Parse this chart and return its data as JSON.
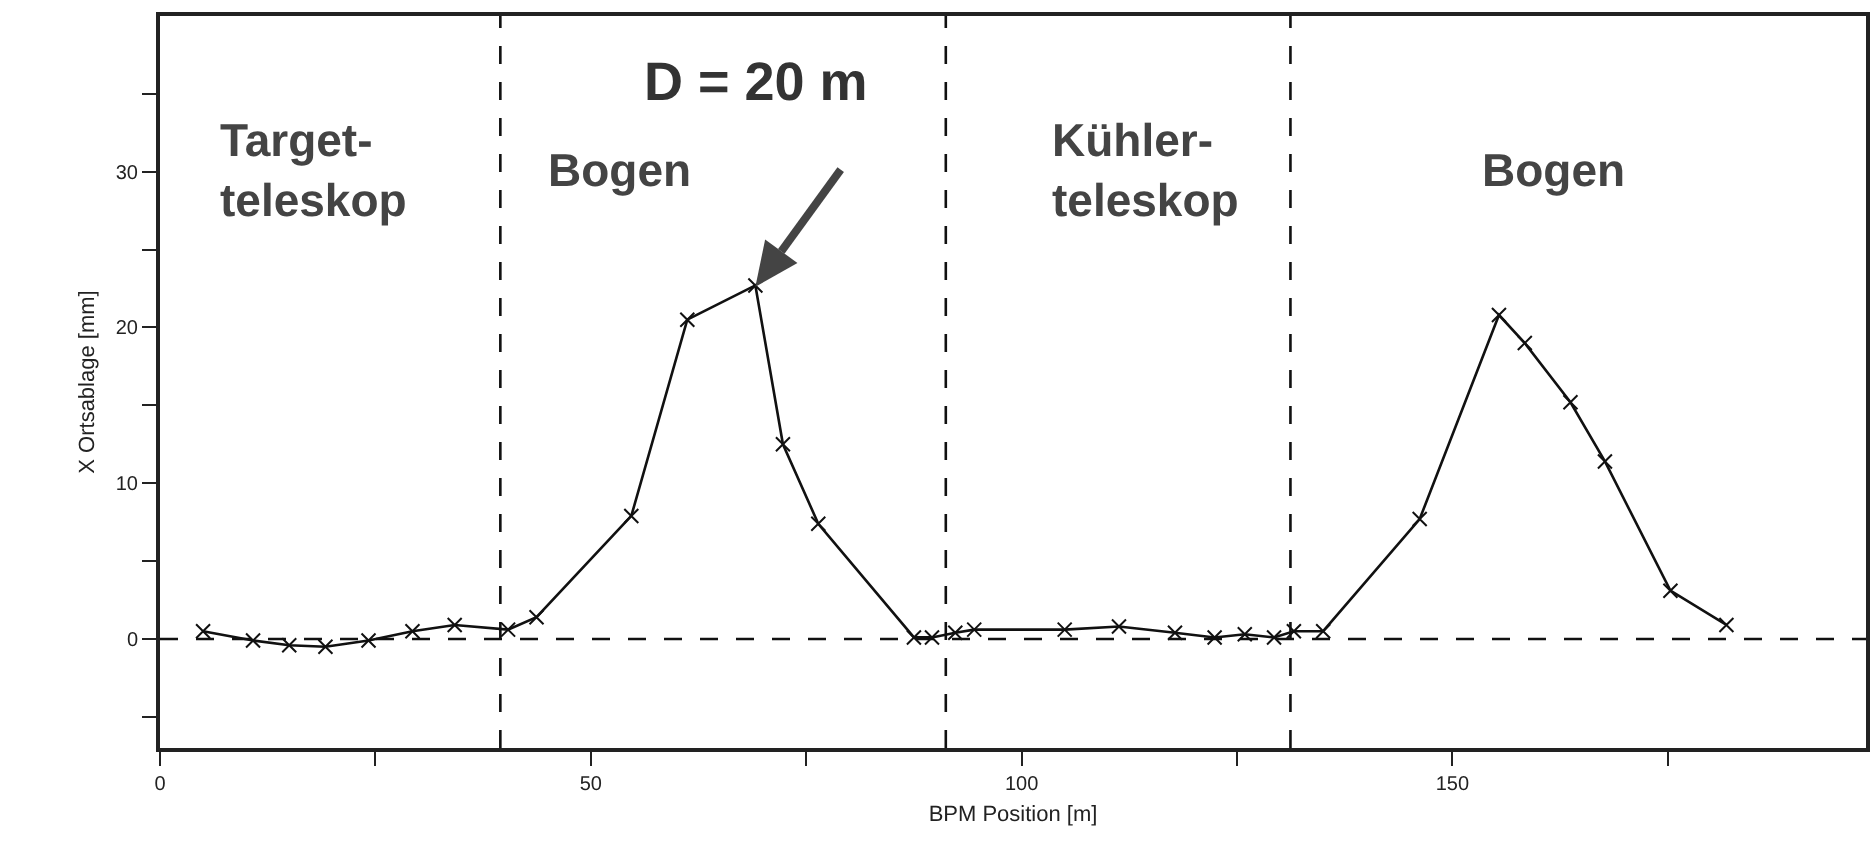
{
  "chart_data": {
    "type": "line",
    "xlabel": "BPM Position [m]",
    "ylabel": "X Ortsablage [mm]",
    "x": [
      5,
      10.8,
      15,
      19.2,
      24.2,
      29.3,
      34.2,
      40.4,
      43.7,
      54.7,
      61.2,
      69.1,
      72.3,
      76.4,
      87.5,
      89.6,
      92.3,
      94.5,
      105,
      111.3,
      117.8,
      122.4,
      125.9,
      129.3,
      131.6,
      135,
      146.2,
      155.4,
      158.4,
      163.7,
      167.7,
      175.3,
      181.8
    ],
    "series": [
      {
        "color": "#111111",
        "values": [
          0.5,
          -0.1,
          -0.4,
          -0.5,
          -0.1,
          0.5,
          0.9,
          0.6,
          1.4,
          7.9,
          20.5,
          22.7,
          12.5,
          7.4,
          0.1,
          0.1,
          0.4,
          0.6,
          0.6,
          0.8,
          0.4,
          0.1,
          0.3,
          0.1,
          0.5,
          0.5,
          7.7,
          20.8,
          19,
          15.2,
          11.4,
          3.1,
          0.9
        ]
      }
    ],
    "xlim": [
      0,
      198
    ],
    "xticks": [
      0,
      {
        "value": 25,
        "label": null
      },
      50,
      {
        "value": 75,
        "label": null
      },
      100,
      {
        "value": 125,
        "label": null
      },
      150,
      {
        "value": 175,
        "label": null
      }
    ],
    "ylim": [
      -7,
      40
    ],
    "yticks": [
      {
        "value": -5,
        "label": null
      },
      0,
      {
        "value": 5,
        "label": null
      },
      10,
      {
        "value": 15,
        "label": null
      },
      20,
      {
        "value": 25,
        "label": null
      },
      30,
      {
        "value": 35,
        "label": null
      }
    ],
    "grid": false,
    "marker": "cross",
    "line_style": "solid",
    "ref_lines": [
      {
        "axis": "x",
        "value": 39.5,
        "color": "#111111",
        "line_style": "dashed"
      },
      {
        "axis": "x",
        "value": 91.2,
        "color": "#111111",
        "line_style": "dashed"
      },
      {
        "axis": "x",
        "value": 131.2,
        "color": "#111111",
        "line_style": "dashed"
      },
      {
        "axis": "y",
        "value": 0,
        "color": "#111111",
        "line_style": "dashed"
      }
    ],
    "annotations": [
      "Target-\nteleskop",
      "Bogen",
      "Kühler-\nteleskop",
      "Bogen",
      "D = 20 m"
    ]
  }
}
